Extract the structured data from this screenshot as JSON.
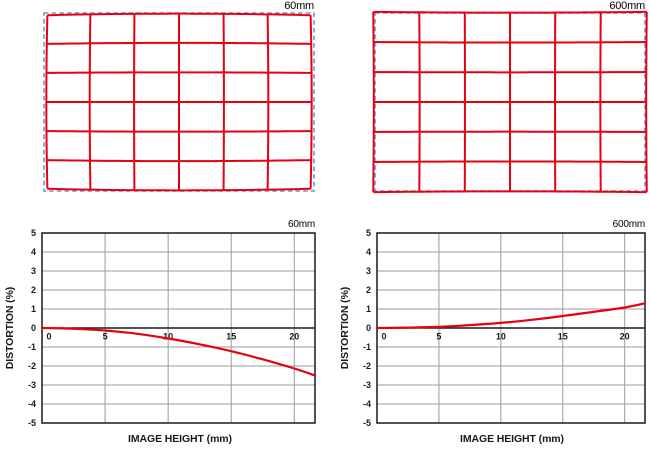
{
  "colors": {
    "red": "#e60012",
    "blue_dashed": "#7b8fc7",
    "grid_gray": "#9b9b9b",
    "axis_dark": "#1a1a1a",
    "text": "#000000",
    "background": "#ffffff"
  },
  "grid_diagrams": [
    {
      "label": "60mm",
      "distortion_type": "barrel",
      "k": -0.025,
      "cols": 6,
      "rows": 6,
      "reference_frame": "blue-dashed-rectangle",
      "distorted_grid": "red-solid-lines"
    },
    {
      "label": "600mm",
      "distortion_type": "pincushion",
      "k": 0.013,
      "cols": 6,
      "rows": 6,
      "reference_frame": "blue-dashed-rectangle",
      "distorted_grid": "red-solid-lines"
    }
  ],
  "chart_data": [
    {
      "type": "line",
      "title": "60mm",
      "xlabel": "IMAGE HEIGHT (mm)",
      "ylabel": "DISTORTION (%)",
      "xlim": [
        0,
        21.64
      ],
      "ylim": [
        -5,
        5
      ],
      "x_ticks": [
        0,
        5,
        10,
        15,
        20
      ],
      "y_ticks": [
        5,
        4,
        3,
        2,
        1,
        0,
        -1,
        -2,
        -3,
        -4,
        -5
      ],
      "grid": "on",
      "series": [
        {
          "name": "distortion",
          "color": "#e60012",
          "points": [
            [
              0,
              0
            ],
            [
              2.5,
              -0.04
            ],
            [
              5,
              -0.13
            ],
            [
              7.5,
              -0.3
            ],
            [
              10,
              -0.55
            ],
            [
              12.5,
              -0.86
            ],
            [
              15,
              -1.22
            ],
            [
              17.5,
              -1.65
            ],
            [
              20,
              -2.13
            ],
            [
              21.64,
              -2.5
            ]
          ]
        }
      ]
    },
    {
      "type": "line",
      "title": "600mm",
      "xlabel": "IMAGE HEIGHT (mm)",
      "ylabel": "DISTORTION (%)",
      "xlim": [
        0,
        21.64
      ],
      "ylim": [
        -5,
        5
      ],
      "x_ticks": [
        0,
        5,
        10,
        15,
        20
      ],
      "y_ticks": [
        5,
        4,
        3,
        2,
        1,
        0,
        -1,
        -2,
        -3,
        -4,
        -5
      ],
      "grid": "on",
      "series": [
        {
          "name": "distortion",
          "color": "#e60012",
          "points": [
            [
              0,
              0
            ],
            [
              2.5,
              0.02
            ],
            [
              5,
              0.06
            ],
            [
              7.5,
              0.15
            ],
            [
              10,
              0.27
            ],
            [
              12.5,
              0.43
            ],
            [
              15,
              0.63
            ],
            [
              17.5,
              0.85
            ],
            [
              20,
              1.08
            ],
            [
              21.64,
              1.3
            ]
          ]
        }
      ]
    }
  ]
}
